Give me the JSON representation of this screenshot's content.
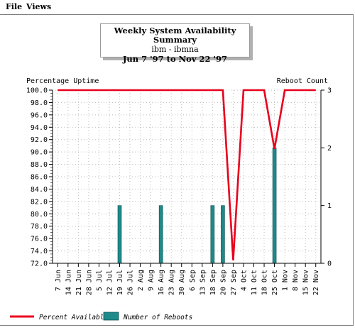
{
  "menu": {
    "file": "File",
    "views": "Views"
  },
  "chart_data": {
    "type": "bar+line",
    "title": "Weekly System Availability Summary",
    "subtitle": "ibm - ibmna",
    "date_range": "Jun 7 '97 to Nov 22 '97",
    "ylabel_left": "Percentage Uptime",
    "ylabel_right": "Reboot Count",
    "left_ticks": [
      "100.0",
      "98.0",
      "96.0",
      "94.0",
      "92.0",
      "90.0",
      "88.0",
      "86.0",
      "84.0",
      "82.0",
      "80.0",
      "78.0",
      "76.0",
      "74.0",
      "72.0"
    ],
    "right_ticks": [
      "3",
      "2",
      "1",
      "0"
    ],
    "ylim_left": [
      72,
      100
    ],
    "ylim_right": [
      0,
      3
    ],
    "categories": [
      "7 Jun",
      "14 Jun",
      "21 Jun",
      "28 Jun",
      "5 Jul",
      "12 Jul",
      "19 Jul",
      "26 Jul",
      "2 Aug",
      "9 Aug",
      "16 Aug",
      "23 Aug",
      "30 Aug",
      "6 Sep",
      "13 Sep",
      "18 Sep",
      "20 Sep",
      "27 Sep",
      "4 Oct",
      "11 Oct",
      "18 Oct",
      "25 Oct",
      "1 Nov",
      "8 Nov",
      "15 Nov",
      "22 Nov"
    ],
    "series": [
      {
        "name": "Percent Available",
        "color": "#e8001c",
        "values": [
          100,
          100,
          100,
          100,
          100,
          100,
          100,
          100,
          100,
          100,
          100,
          100,
          100,
          100,
          100,
          100,
          100,
          72.5,
          100,
          100,
          100,
          90.5,
          100,
          100,
          100,
          100
        ]
      },
      {
        "name": "Number of Reboots",
        "color": "#1f8a8a",
        "values": [
          0,
          0,
          0,
          0,
          0,
          0,
          1,
          0,
          0,
          0,
          1,
          0,
          0,
          0,
          0,
          1,
          1,
          0,
          0,
          0,
          0,
          2,
          0,
          0,
          0,
          0
        ]
      }
    ],
    "grid": true,
    "legend_position": "bottom"
  }
}
